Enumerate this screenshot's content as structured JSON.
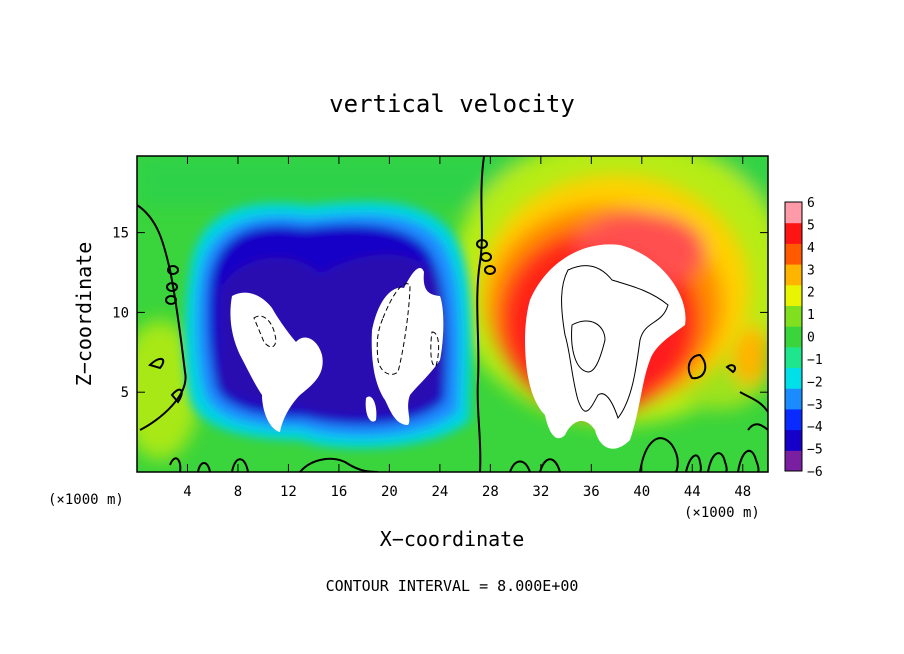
{
  "chart_data": {
    "type": "heatmap",
    "title": "vertical velocity",
    "xlabel": "X−coordinate",
    "ylabel": "Z−coordinate",
    "x_unit": "(×1000 m)",
    "y_unit": "(×1000 m)",
    "xlim": [
      0,
      50
    ],
    "ylim": [
      0,
      19.8
    ],
    "x_ticks": [
      4,
      8,
      12,
      16,
      20,
      24,
      28,
      32,
      36,
      40,
      44,
      48
    ],
    "y_ticks": [
      5,
      10,
      15
    ],
    "x_tick_labels": [
      "4",
      "8",
      "12",
      "16",
      "20",
      "24",
      "28",
      "32",
      "36",
      "40",
      "44",
      "48"
    ],
    "y_tick_labels": [
      "5",
      "10",
      "15"
    ],
    "colorbar": {
      "min": -6,
      "max": 6,
      "labels": [
        "6",
        "5",
        "4",
        "3",
        "2",
        "1",
        "0",
        "−1",
        "−2",
        "−3",
        "−4",
        "−5",
        "−6"
      ],
      "colors": [
        "#7a1fa2",
        "#1400c8",
        "#0a2bff",
        "#1a8cff",
        "#00e0e8",
        "#1ee68c",
        "#3ad43c",
        "#80e020",
        "#e8f400",
        "#ffb400",
        "#ff5a00",
        "#ff1414",
        "#ff9aa8"
      ]
    },
    "field_features": [
      {
        "label": "updraft",
        "center": [
          37.5,
          9.5
        ],
        "peak": "> 6"
      },
      {
        "label": "downdraft",
        "center": [
          11.5,
          8.5
        ],
        "peak": "< -6"
      },
      {
        "label": "downdraft",
        "center": [
          21.0,
          8.5
        ],
        "peak": "< -6"
      }
    ],
    "contour_interval": "CONTOUR INTERVAL = 8.000E+00"
  }
}
